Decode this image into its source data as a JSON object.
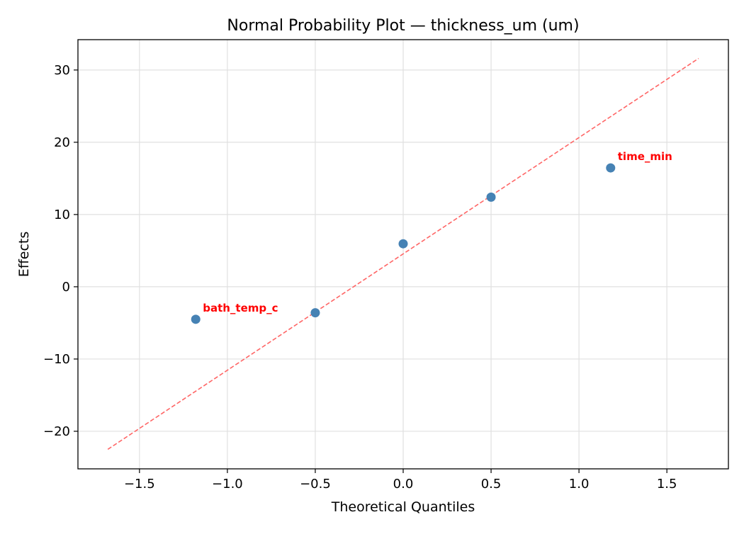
{
  "chart_data": {
    "type": "scatter",
    "title": "Normal Probability Plot — thickness_um (um)",
    "xlabel": "Theoretical Quantiles",
    "ylabel": "Effects",
    "xlim": [
      -1.85,
      1.85
    ],
    "ylim": [
      -25.2,
      34.2
    ],
    "grid": true,
    "xticks": [
      -1.5,
      -1.0,
      -0.5,
      0.0,
      0.5,
      1.0,
      1.5
    ],
    "xtick_labels": [
      "−1.5",
      "−1.0",
      "−0.5",
      "0.0",
      "0.5",
      "1.0",
      "1.5"
    ],
    "yticks": [
      -20,
      -10,
      0,
      10,
      20,
      30
    ],
    "ytick_labels": [
      "−20",
      "−10",
      "0",
      "10",
      "20",
      "30"
    ],
    "points": [
      {
        "x": -1.18,
        "y": -4.5,
        "label": "bath_temp_c"
      },
      {
        "x": -0.5,
        "y": -3.6,
        "label": ""
      },
      {
        "x": 0.0,
        "y": 5.95,
        "label": ""
      },
      {
        "x": 0.5,
        "y": 12.4,
        "label": ""
      },
      {
        "x": 1.18,
        "y": 16.45,
        "label": "time_min"
      }
    ],
    "reference_line": {
      "x": [
        -1.68,
        1.68
      ],
      "y": [
        -22.5,
        31.6
      ],
      "style": "dashed"
    },
    "colors": {
      "points": "#4682b4",
      "line": "#ff6666",
      "annotation": "#ff0000",
      "grid": "#e0e0e0"
    }
  }
}
